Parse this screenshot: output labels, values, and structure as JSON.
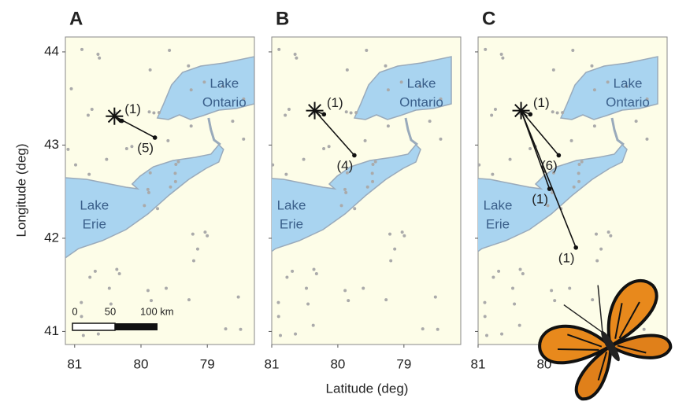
{
  "x_axis_label": "Latitude (deg)",
  "y_axis_label": "Longitude (deg)",
  "yticks": [
    41,
    42,
    43,
    44
  ],
  "panels": [
    {
      "label": "A",
      "xlim": [
        81.14,
        78.29
      ],
      "ylim": [
        40.86,
        44.16
      ],
      "xticks": [
        81,
        80,
        79
      ],
      "lakes": {
        "ontario": [
          "Lake",
          "Ontario"
        ],
        "erie": [
          "Lake",
          "Erie"
        ]
      },
      "release": {
        "x": 80.4,
        "y": 43.31
      },
      "recaptures": [
        {
          "x": 80.29,
          "y": 43.26,
          "label": "(1)"
        },
        {
          "x": 79.79,
          "y": 43.08,
          "label": "(5)"
        }
      ],
      "scale_labels": [
        "0",
        "50",
        "100 km"
      ]
    },
    {
      "label": "B",
      "xlim": [
        81.0,
        78.14
      ],
      "ylim": [
        40.86,
        44.16
      ],
      "xticks": [
        81,
        80,
        79
      ],
      "lakes": {
        "ontario": [
          "Lake",
          "Ontario"
        ],
        "erie": [
          "Lake",
          "Erie"
        ]
      },
      "release": {
        "x": 80.35,
        "y": 43.37
      },
      "recaptures": [
        {
          "x": 80.21,
          "y": 43.33,
          "label": "(1)"
        },
        {
          "x": 79.75,
          "y": 42.89,
          "label": "(4)"
        }
      ]
    },
    {
      "label": "C",
      "xlim": [
        81.0,
        78.14
      ],
      "ylim": [
        40.86,
        44.16
      ],
      "xticks": [
        81,
        80
      ],
      "lakes": {
        "ontario": [
          "Lake",
          "Ontario"
        ],
        "erie": [
          "Lake",
          "Erie"
        ]
      },
      "release": {
        "x": 80.35,
        "y": 43.37
      },
      "recaptures": [
        {
          "x": 80.21,
          "y": 43.33,
          "label": "(1)"
        },
        {
          "x": 79.78,
          "y": 42.89,
          "label": "(6)"
        },
        {
          "x": 79.92,
          "y": 42.53,
          "label": "(1)"
        },
        {
          "x": 79.52,
          "y": 41.9,
          "label": "(1)"
        }
      ]
    }
  ]
}
